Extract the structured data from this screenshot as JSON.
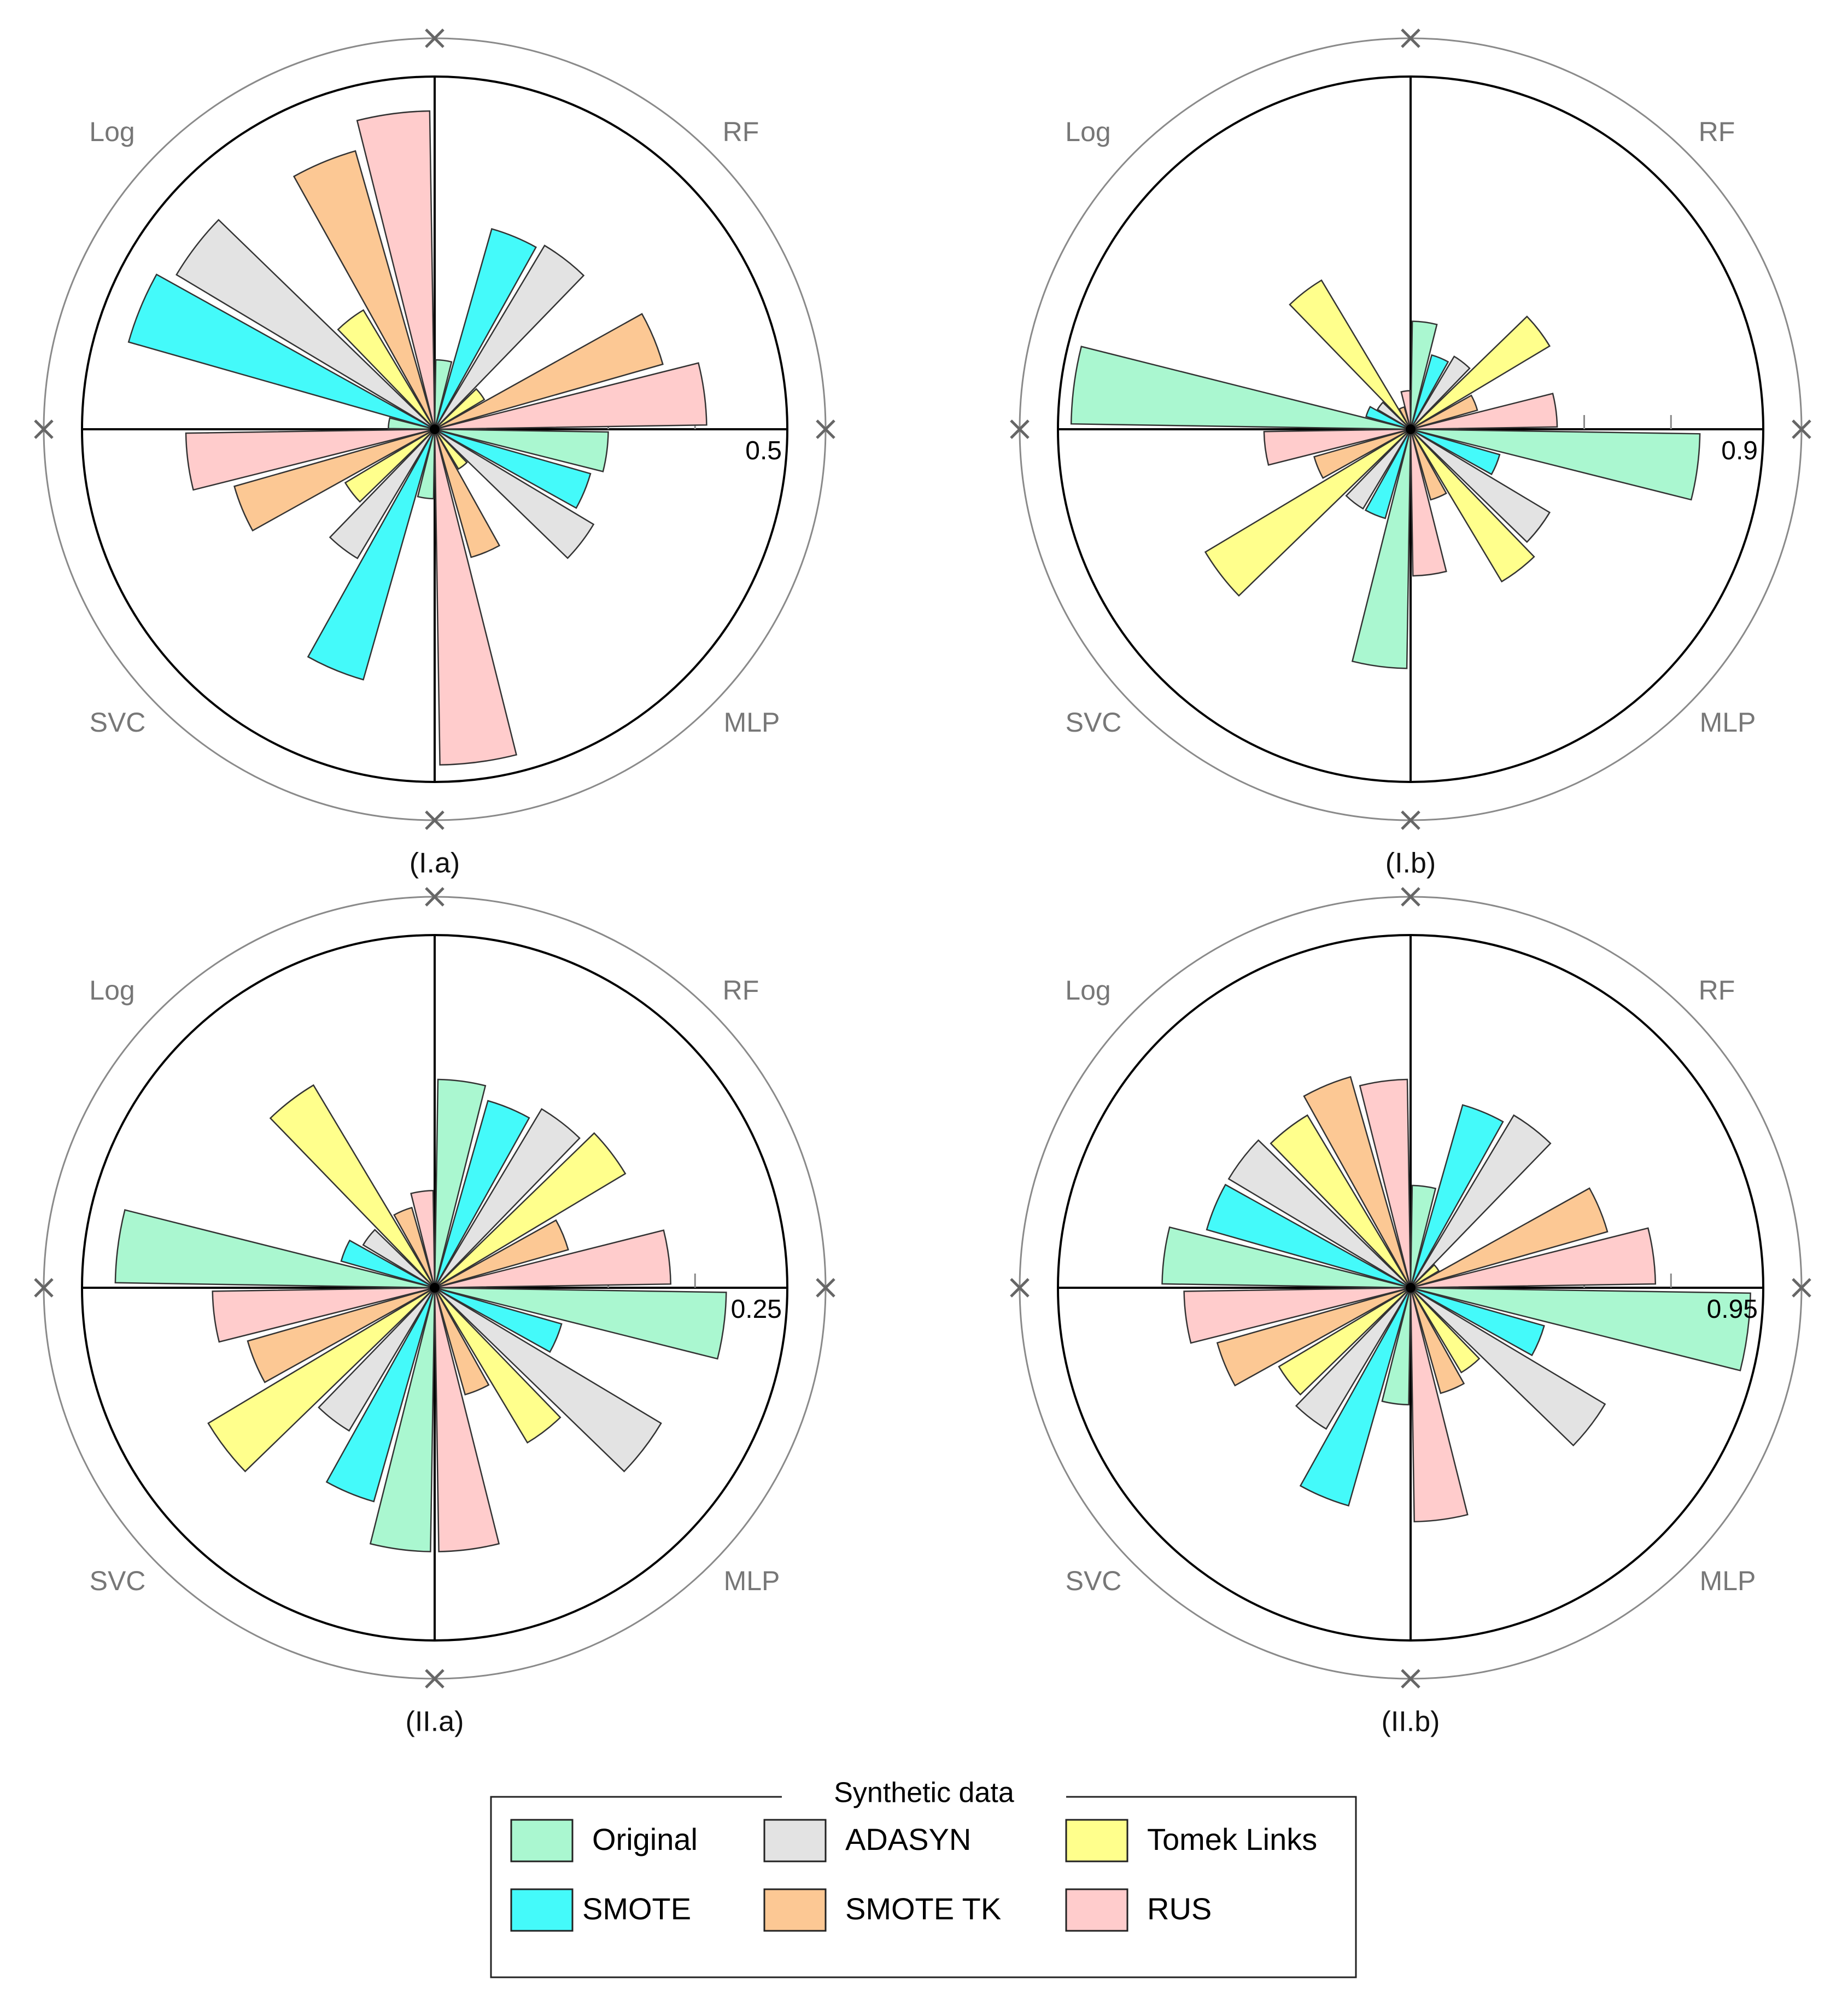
{
  "legend": {
    "title": "Synthetic data",
    "methods": [
      {
        "key": "original",
        "label": "Original",
        "color": "#aaf7d0"
      },
      {
        "key": "adasyn",
        "label": "ADASYN",
        "color": "#e3e3e3"
      },
      {
        "key": "tomek",
        "label": "Tomek Links",
        "color": "#ffff8c"
      },
      {
        "key": "smote",
        "label": "SMOTE",
        "color": "#44fafa"
      },
      {
        "key": "smotetk",
        "label": "SMOTE TK",
        "color": "#fcc894"
      },
      {
        "key": "rus",
        "label": "RUS",
        "color": "#ffcccc"
      }
    ]
  },
  "chart_data": [
    {
      "type": "polar-bar",
      "title": "(I.a)",
      "models": [
        "RF",
        "MLP",
        "SVC",
        "Log"
      ],
      "scale_label": "0.5",
      "rmax": 0.6,
      "series": [
        {
          "name": "Original",
          "values": [
            0.12,
            0.3,
            0.12,
            0.08
          ]
        },
        {
          "name": "SMOTE",
          "values": [
            0.36,
            0.28,
            0.45,
            0.55
          ]
        },
        {
          "name": "ADASYN",
          "values": [
            0.37,
            0.32,
            0.26,
            0.52
          ]
        },
        {
          "name": "Tomek Links",
          "values": [
            0.1,
            0.08,
            0.18,
            0.24
          ]
        },
        {
          "name": "SMOTE TK",
          "values": [
            0.41,
            0.23,
            0.36,
            0.5
          ]
        },
        {
          "name": "RUS",
          "values": [
            0.47,
            0.58,
            0.43,
            0.55
          ]
        }
      ]
    },
    {
      "type": "polar-bar",
      "title": "(I.b)",
      "models": [
        "RF",
        "MLP",
        "SVC",
        "Log"
      ],
      "scale_label": "0.9",
      "rmax": 0.9,
      "series": [
        {
          "name": "Original",
          "values": [
            0.28,
            0.75,
            0.62,
            0.88
          ]
        },
        {
          "name": "SMOTE",
          "values": [
            0.2,
            0.24,
            0.24,
            0.12
          ]
        },
        {
          "name": "ADASYN",
          "values": [
            0.22,
            0.42,
            0.24,
            0.1
          ]
        },
        {
          "name": "Tomek Links",
          "values": [
            0.42,
            0.46,
            0.62,
            0.45
          ]
        },
        {
          "name": "SMOTE TK",
          "values": [
            0.18,
            0.19,
            0.26,
            0.06
          ]
        },
        {
          "name": "RUS",
          "values": [
            0.38,
            0.38,
            0.38,
            0.1
          ]
        }
      ]
    },
    {
      "type": "polar-bar",
      "title": "(II.a)",
      "models": [
        "RF",
        "MLP",
        "SVC",
        "Log"
      ],
      "scale_label": "0.25",
      "rmax": 0.25,
      "series": [
        {
          "name": "Original",
          "values": [
            0.15,
            0.21,
            0.19,
            0.23
          ]
        },
        {
          "name": "SMOTE",
          "values": [
            0.14,
            0.095,
            0.16,
            0.07
          ]
        },
        {
          "name": "ADASYN",
          "values": [
            0.15,
            0.19,
            0.12,
            0.06
          ]
        },
        {
          "name": "Tomek Links",
          "values": [
            0.16,
            0.13,
            0.19,
            0.17
          ]
        },
        {
          "name": "SMOTE TK",
          "values": [
            0.1,
            0.08,
            0.14,
            0.06
          ]
        },
        {
          "name": "RUS",
          "values": [
            0.17,
            0.19,
            0.16,
            0.07
          ]
        }
      ]
    },
    {
      "type": "polar-bar",
      "title": "(II.b)",
      "models": [
        "RF",
        "MLP",
        "SVC",
        "Log"
      ],
      "scale_label": "0.95",
      "rmax": 0.95,
      "series": [
        {
          "name": "Original",
          "values": [
            0.28,
            0.93,
            0.32,
            0.68
          ]
        },
        {
          "name": "SMOTE",
          "values": [
            0.52,
            0.38,
            0.62,
            0.58
          ]
        },
        {
          "name": "ADASYN",
          "values": [
            0.55,
            0.62,
            0.45,
            0.58
          ]
        },
        {
          "name": "Tomek Links",
          "values": [
            0.09,
            0.27,
            0.42,
            0.55
          ]
        },
        {
          "name": "SMOTE TK",
          "values": [
            0.56,
            0.3,
            0.55,
            0.6
          ]
        },
        {
          "name": "RUS",
          "values": [
            0.67,
            0.64,
            0.62,
            0.57
          ]
        }
      ]
    }
  ]
}
